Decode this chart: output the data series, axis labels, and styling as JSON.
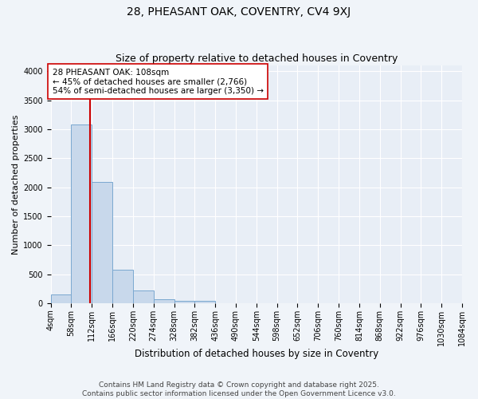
{
  "title": "28, PHEASANT OAK, COVENTRY, CV4 9XJ",
  "subtitle": "Size of property relative to detached houses in Coventry",
  "xlabel": "Distribution of detached houses by size in Coventry",
  "ylabel": "Number of detached properties",
  "bar_color": "#c8d8eb",
  "bar_edge_color": "#7aa8d0",
  "plot_bg": "#e8eef6",
  "fig_bg": "#f0f4f9",
  "grid_color": "#ffffff",
  "vline_value": 108,
  "vline_color": "#cc0000",
  "annotation_text": "28 PHEASANT OAK: 108sqm\n← 45% of detached houses are smaller (2,766)\n54% of semi-detached houses are larger (3,350) →",
  "annotation_box_facecolor": "#ffffff",
  "annotation_box_edgecolor": "#cc0000",
  "bin_edges": [
    4,
    58,
    112,
    166,
    220,
    274,
    328,
    382,
    436,
    490,
    544,
    598,
    652,
    706,
    760,
    814,
    868,
    922,
    976,
    1030,
    1084
  ],
  "bin_values": [
    150,
    3080,
    2085,
    575,
    225,
    65,
    40,
    35,
    0,
    0,
    0,
    0,
    0,
    0,
    0,
    0,
    0,
    0,
    0,
    0
  ],
  "ylim": [
    0,
    4100
  ],
  "xlim": [
    4,
    1084
  ],
  "yticks": [
    0,
    500,
    1000,
    1500,
    2000,
    2500,
    3000,
    3500,
    4000
  ],
  "footer_text": "Contains HM Land Registry data © Crown copyright and database right 2025.\nContains public sector information licensed under the Open Government Licence v3.0.",
  "title_fontsize": 10,
  "subtitle_fontsize": 9,
  "xlabel_fontsize": 8.5,
  "ylabel_fontsize": 8,
  "tick_fontsize": 7,
  "footer_fontsize": 6.5,
  "annotation_fontsize": 7.5
}
